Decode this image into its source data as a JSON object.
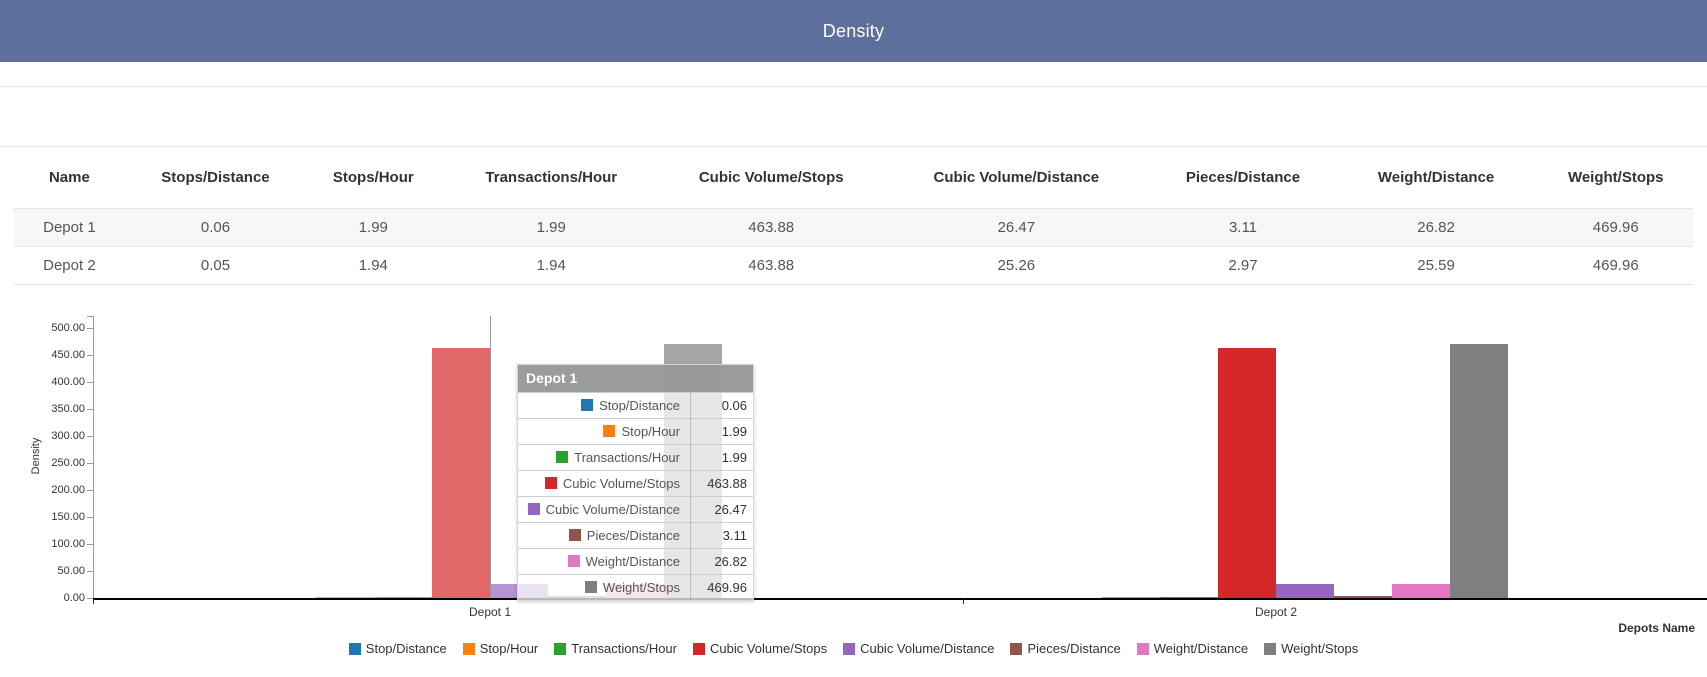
{
  "header": {
    "title": "Density"
  },
  "theme": {
    "header_bg": "#5d6f9c"
  },
  "table": {
    "columns": [
      "Name",
      "Stops/Distance",
      "Stops/Hour",
      "Transactions/Hour",
      "Cubic Volume/Stops",
      "Cubic Volume/Distance",
      "Pieces/Distance",
      "Weight/Distance",
      "Weight/Stops"
    ],
    "rows": [
      {
        "name": "Depot 1",
        "values": [
          "0.06",
          "1.99",
          "1.99",
          "463.88",
          "26.47",
          "3.11",
          "26.82",
          "469.96"
        ]
      },
      {
        "name": "Depot 2",
        "values": [
          "0.05",
          "1.94",
          "1.94",
          "463.88",
          "25.26",
          "2.97",
          "25.59",
          "469.96"
        ]
      }
    ]
  },
  "chart_data": {
    "type": "bar",
    "title": "",
    "categories": [
      "Depot 1",
      "Depot 2"
    ],
    "series": [
      {
        "name": "Stop/Distance",
        "color": "#1f77b4",
        "values": [
          0.06,
          0.05
        ]
      },
      {
        "name": "Stop/Hour",
        "color": "#ff7f0e",
        "values": [
          1.99,
          1.94
        ]
      },
      {
        "name": "Transactions/Hour",
        "color": "#2ca02c",
        "values": [
          1.99,
          1.94
        ]
      },
      {
        "name": "Cubic Volume/Stops",
        "color": "#d62728",
        "values": [
          463.88,
          463.88
        ]
      },
      {
        "name": "Cubic Volume/Distance",
        "color": "#9467bd",
        "values": [
          26.47,
          25.26
        ]
      },
      {
        "name": "Pieces/Distance",
        "color": "#8c564b",
        "values": [
          3.11,
          2.97
        ]
      },
      {
        "name": "Weight/Distance",
        "color": "#e377c2",
        "values": [
          26.82,
          25.59
        ]
      },
      {
        "name": "Weight/Stops",
        "color": "#7f7f7f",
        "values": [
          469.96,
          469.96
        ]
      }
    ],
    "xlabel": "Depots Name",
    "ylabel": "Density",
    "ylim": [
      0,
      500
    ],
    "ytick_step": 50,
    "ytick_labels": [
      "0.00",
      "50.00",
      "100.00",
      "150.00",
      "200.00",
      "250.00",
      "300.00",
      "350.00",
      "400.00",
      "450.00",
      "500.00"
    ],
    "grid": false,
    "legend_position": "bottom",
    "hovered_category": "Depot 1"
  },
  "tooltip": {
    "title": "Depot 1",
    "rows": [
      {
        "label": "Stop/Distance",
        "value": "0.06"
      },
      {
        "label": "Stop/Hour",
        "value": "1.99"
      },
      {
        "label": "Transactions/Hour",
        "value": "1.99"
      },
      {
        "label": "Cubic Volume/Stops",
        "value": "463.88"
      },
      {
        "label": "Cubic Volume/Distance",
        "value": "26.47"
      },
      {
        "label": "Pieces/Distance",
        "value": "3.11"
      },
      {
        "label": "Weight/Distance",
        "value": "26.82"
      },
      {
        "label": "Weight/Stops",
        "value": "469.96"
      }
    ]
  }
}
